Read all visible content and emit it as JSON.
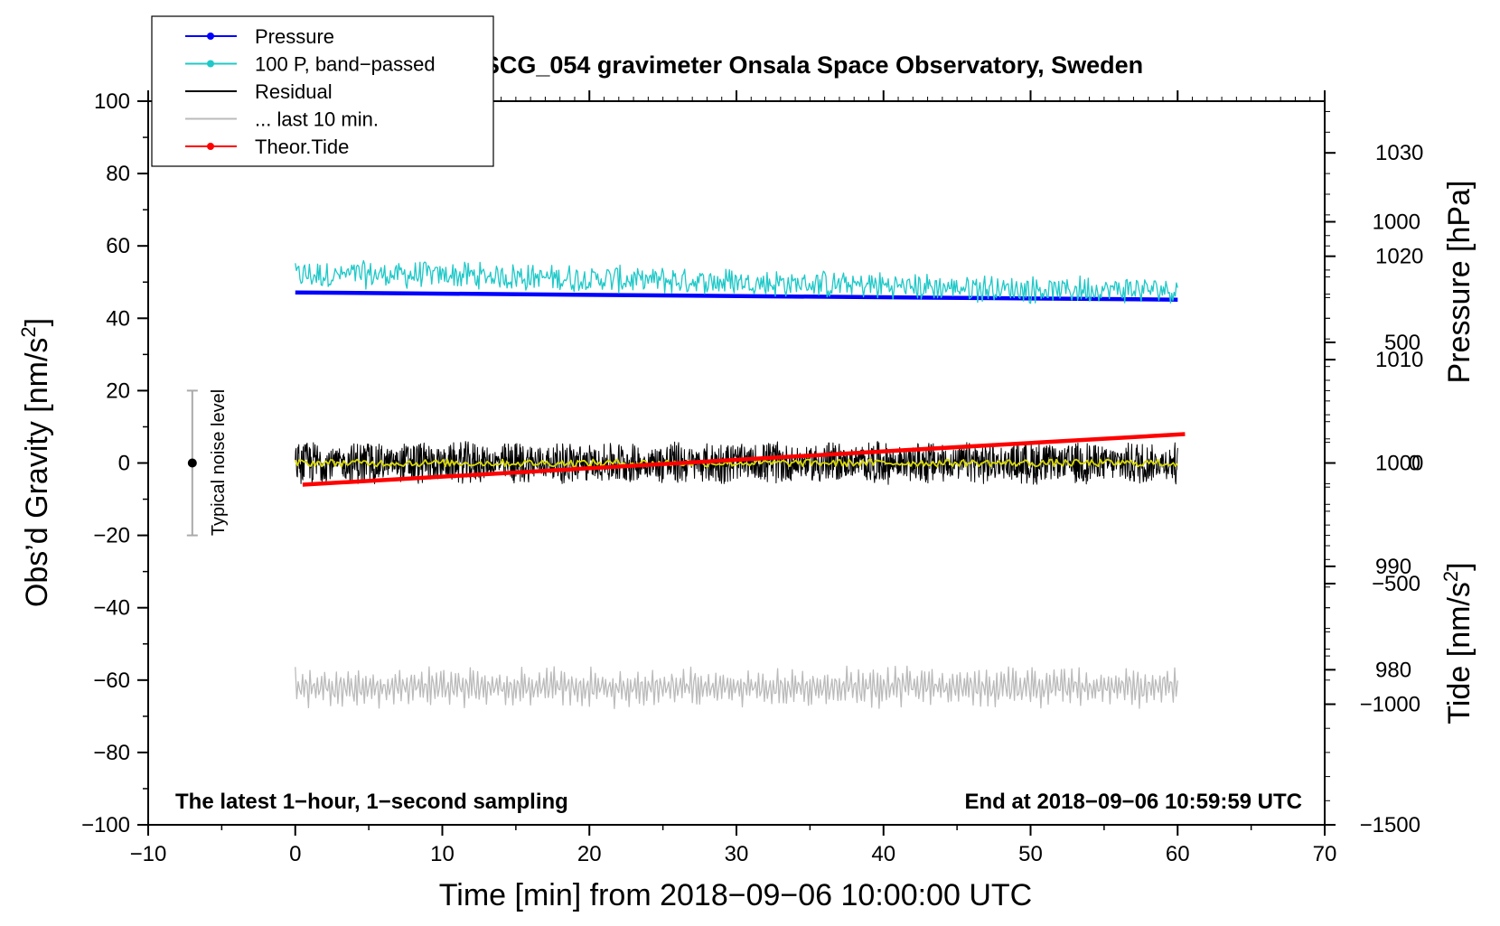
{
  "chart_data": {
    "type": "line",
    "title": "SCG_054 gravimeter Onsala Space Observatory, Sweden",
    "xlabel": "Time [min] from 2018−09−06 10:00:00 UTC",
    "ylabel_left": "Obs’d Gravity [nm/s²]",
    "ylabel_pressure": "Pressure [hPa]",
    "ylabel_tide": "Tide [nm/s²]",
    "xlim": [
      -10,
      70
    ],
    "ylim": [
      -100,
      100
    ],
    "pressure_lim": [
      965,
      1035
    ],
    "tide_lim": [
      -1500,
      1500
    ],
    "x_ticks": [
      "−10",
      "0",
      "10",
      "20",
      "30",
      "40",
      "50",
      "60",
      "70"
    ],
    "y_ticks": [
      "−100",
      "−80",
      "−60",
      "−40",
      "−20",
      "0",
      "20",
      "40",
      "60",
      "80",
      "100"
    ],
    "pressure_ticks": [
      "980",
      "990",
      "1000",
      "1010",
      "1020",
      "1030"
    ],
    "tide_ticks": [
      "−1500",
      "−1000",
      "−500",
      "0",
      "500",
      "1000"
    ],
    "grid": false,
    "legend_position": "top-left",
    "legend": [
      {
        "label": "Pressure",
        "color": "#0000ff",
        "marker": true
      },
      {
        "label": "100 P, band−passed",
        "color": "#20c8c8",
        "marker": true
      },
      {
        "label": "Residual",
        "color": "#000000",
        "marker": false
      },
      {
        "label": "... last 10 min.",
        "color": "#bbbbbb",
        "marker": false
      },
      {
        "label": "Theor.Tide",
        "color": "#ff0000",
        "marker": true
      }
    ],
    "series": [
      {
        "name": "Pressure",
        "axis": "pressure",
        "color": "#0000ff",
        "x": [
          0,
          60
        ],
        "y": [
          1016.5,
          1015.8
        ]
      },
      {
        "name": "100 P, band−passed",
        "axis": "gravity",
        "color": "#20c8c8",
        "x": [
          0,
          10,
          20,
          30,
          40,
          50,
          60
        ],
        "y": [
          52,
          52,
          51,
          50,
          49,
          48,
          48
        ],
        "noise_amplitude": 4
      },
      {
        "name": "Residual",
        "axis": "gravity",
        "color": "#000000",
        "x": [
          0,
          60
        ],
        "y": [
          0,
          0
        ],
        "noise_amplitude": 6
      },
      {
        "name": "smoothed residual",
        "axis": "gravity",
        "color": "#d8d800",
        "x": [
          0,
          60
        ],
        "y": [
          0,
          0
        ],
        "noise_amplitude": 1
      },
      {
        "name": "... last 10 min.",
        "axis": "gravity",
        "color": "#bbbbbb",
        "x": [
          0,
          60
        ],
        "y": [
          -62,
          -62
        ],
        "noise_amplitude": 6
      },
      {
        "name": "Theor.Tide",
        "axis": "tide",
        "color": "#ff0000",
        "x": [
          0.5,
          60.5
        ],
        "y": [
          -90,
          120
        ]
      }
    ],
    "noise_bar": {
      "label": "Typical noise level",
      "x": -7,
      "y": 0,
      "range": [
        -20,
        20
      ]
    },
    "note_left": "The latest 1−hour, 1−second sampling",
    "note_right": "End at 2018−09−06 10:59:59 UTC"
  }
}
